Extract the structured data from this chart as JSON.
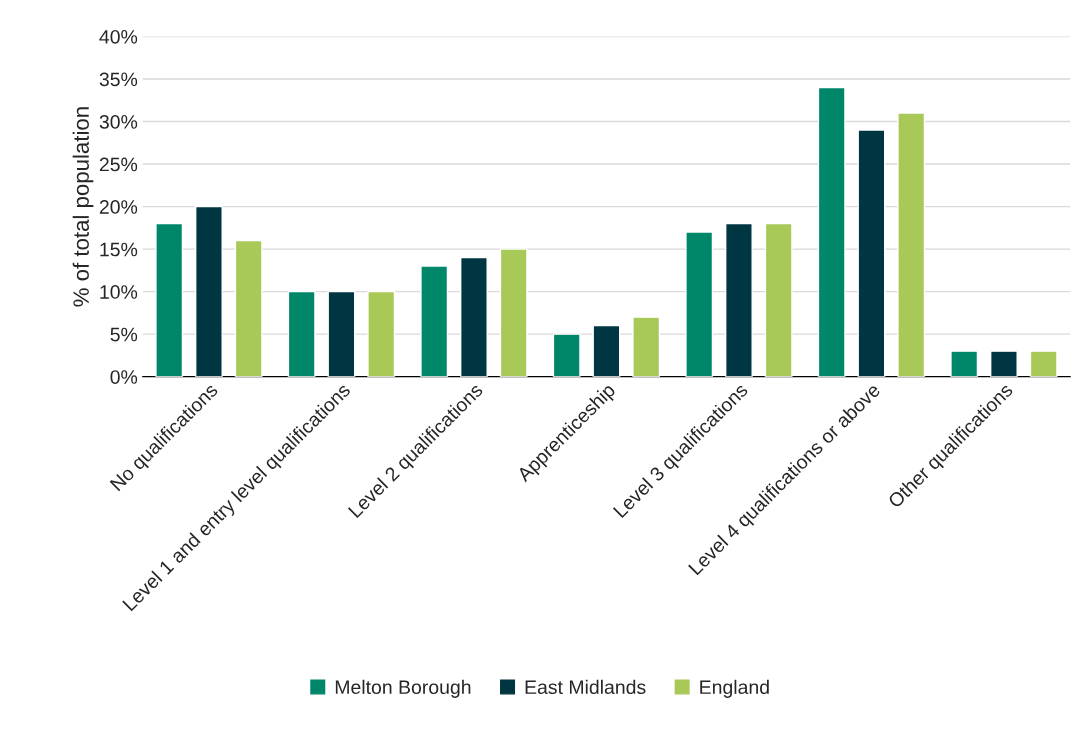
{
  "chart_data": {
    "type": "bar",
    "ylabel": "% of total population",
    "categories": [
      "No qualifications",
      "Level 1 and entry level qualifications",
      "Level 2 qualifications",
      "Apprenticeship",
      "Level 3 qualifications",
      "Level 4 qualifications or above",
      "Other qualifications"
    ],
    "series": [
      {
        "name": "Melton Borough",
        "color": "#00876a",
        "values": [
          18,
          10,
          13,
          5,
          17,
          34,
          3
        ]
      },
      {
        "name": "East Midlands",
        "color": "#003641",
        "values": [
          20,
          10,
          14,
          6,
          18,
          29,
          3
        ]
      },
      {
        "name": "England",
        "color": "#a8c957",
        "values": [
          16,
          10,
          15,
          7,
          18,
          31,
          3
        ]
      }
    ],
    "ylim": [
      0,
      40
    ],
    "yticks": [
      {
        "value": 0,
        "label": "0%"
      },
      {
        "value": 5,
        "label": "5%"
      },
      {
        "value": 10,
        "label": "10%"
      },
      {
        "value": 15,
        "label": "15%"
      },
      {
        "value": 20,
        "label": "20%"
      },
      {
        "value": 25,
        "label": "25%"
      },
      {
        "value": 30,
        "label": "30%"
      },
      {
        "value": 35,
        "label": "35%"
      },
      {
        "value": 40,
        "label": "40%"
      }
    ],
    "grid": "y",
    "legend": "bottom"
  }
}
